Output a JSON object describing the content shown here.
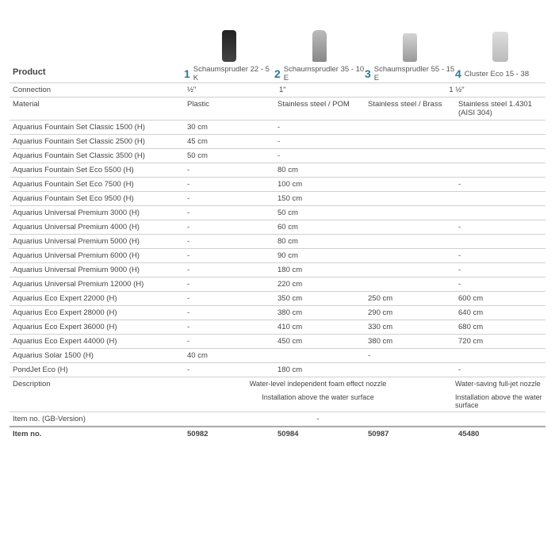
{
  "labels": {
    "product": "Product",
    "connection": "Connection",
    "material": "Material",
    "description": "Description",
    "item_gb": "Item no. (GB-Version)",
    "item_no": "Item no."
  },
  "products": [
    {
      "num": "1",
      "name": "Schaumsprudler 22 - 5 K"
    },
    {
      "num": "2",
      "name": "Schaumsprudler 35 - 10 E"
    },
    {
      "num": "3",
      "name": "Schaumsprudler 55 - 15 E"
    },
    {
      "num": "4",
      "name": "Cluster Eco 15 - 38"
    }
  ],
  "connection": [
    "½\"",
    "1\"",
    "",
    "1 ½\""
  ],
  "material": [
    "Plastic",
    "Stainless steel / POM",
    "Stainless steel / Brass",
    "Stainless steel 1.4301 (AISI 304)"
  ],
  "rows": [
    {
      "label": "Aquarius Fountain Set Classic 1500 (H)",
      "v": [
        "30 cm",
        "-",
        "",
        ""
      ]
    },
    {
      "label": "Aquarius Fountain Set Classic 2500 (H)",
      "v": [
        "45 cm",
        "-",
        "",
        ""
      ]
    },
    {
      "label": "Aquarius Fountain Set Classic 3500 (H)",
      "v": [
        "50 cm",
        "-",
        "",
        ""
      ]
    },
    {
      "label": "Aquarius Fountain Set Eco 5500 (H)",
      "v": [
        "-",
        "80 cm",
        "",
        ""
      ]
    },
    {
      "label": "Aquarius Fountain Set Eco 7500 (H)",
      "v": [
        "-",
        "100 cm",
        "",
        "-"
      ]
    },
    {
      "label": "Aquarius Fountain Set Eco 9500 (H)",
      "v": [
        "-",
        "150 cm",
        "",
        ""
      ]
    },
    {
      "label": "Aquarius Universal Premium 3000 (H)",
      "v": [
        "-",
        "50 cm",
        "",
        ""
      ]
    },
    {
      "label": "Aquarius Universal Premium 4000 (H)",
      "v": [
        "-",
        "60 cm",
        "",
        "-"
      ]
    },
    {
      "label": "Aquarius Universal Premium 5000 (H)",
      "v": [
        "-",
        "80 cm",
        "",
        ""
      ]
    },
    {
      "label": "Aquarius Universal Premium 6000 (H)",
      "v": [
        "-",
        "90 cm",
        "",
        "-"
      ]
    },
    {
      "label": "Aquarius Universal Premium 9000 (H)",
      "v": [
        "-",
        "180 cm",
        "",
        "-"
      ]
    },
    {
      "label": "Aquarius Universal Premium 12000 (H)",
      "v": [
        "-",
        "220 cm",
        "",
        "-"
      ]
    },
    {
      "label": "Aquarius Eco Expert 22000 (H)",
      "v": [
        "-",
        "350 cm",
        "250 cm",
        "600 cm"
      ]
    },
    {
      "label": "Aquarius Eco Expert 28000 (H)",
      "v": [
        "-",
        "380 cm",
        "290 cm",
        "640 cm"
      ]
    },
    {
      "label": "Aquarius Eco Expert 36000 (H)",
      "v": [
        "-",
        "410 cm",
        "330 cm",
        "680 cm"
      ]
    },
    {
      "label": "Aquarius Eco Expert 44000 (H)",
      "v": [
        "-",
        "450 cm",
        "380 cm",
        "720 cm"
      ]
    },
    {
      "label": "Aquarius Solar 1500 (H)",
      "v": [
        "40 cm",
        "",
        "-",
        ""
      ]
    },
    {
      "label": "PondJet Eco (H)",
      "v": [
        "-",
        "180 cm",
        "",
        "-"
      ]
    }
  ],
  "desc": {
    "line1_span3": "Water-level independent foam effect nozzle",
    "line1_col4": "Water-saving full-jet nozzle",
    "line2_span3": "Installation above the water surface",
    "line2_col4": "Installation above the water surface"
  },
  "item_gb": "-",
  "item_no": [
    "50982",
    "50984",
    "50987",
    "45480"
  ]
}
